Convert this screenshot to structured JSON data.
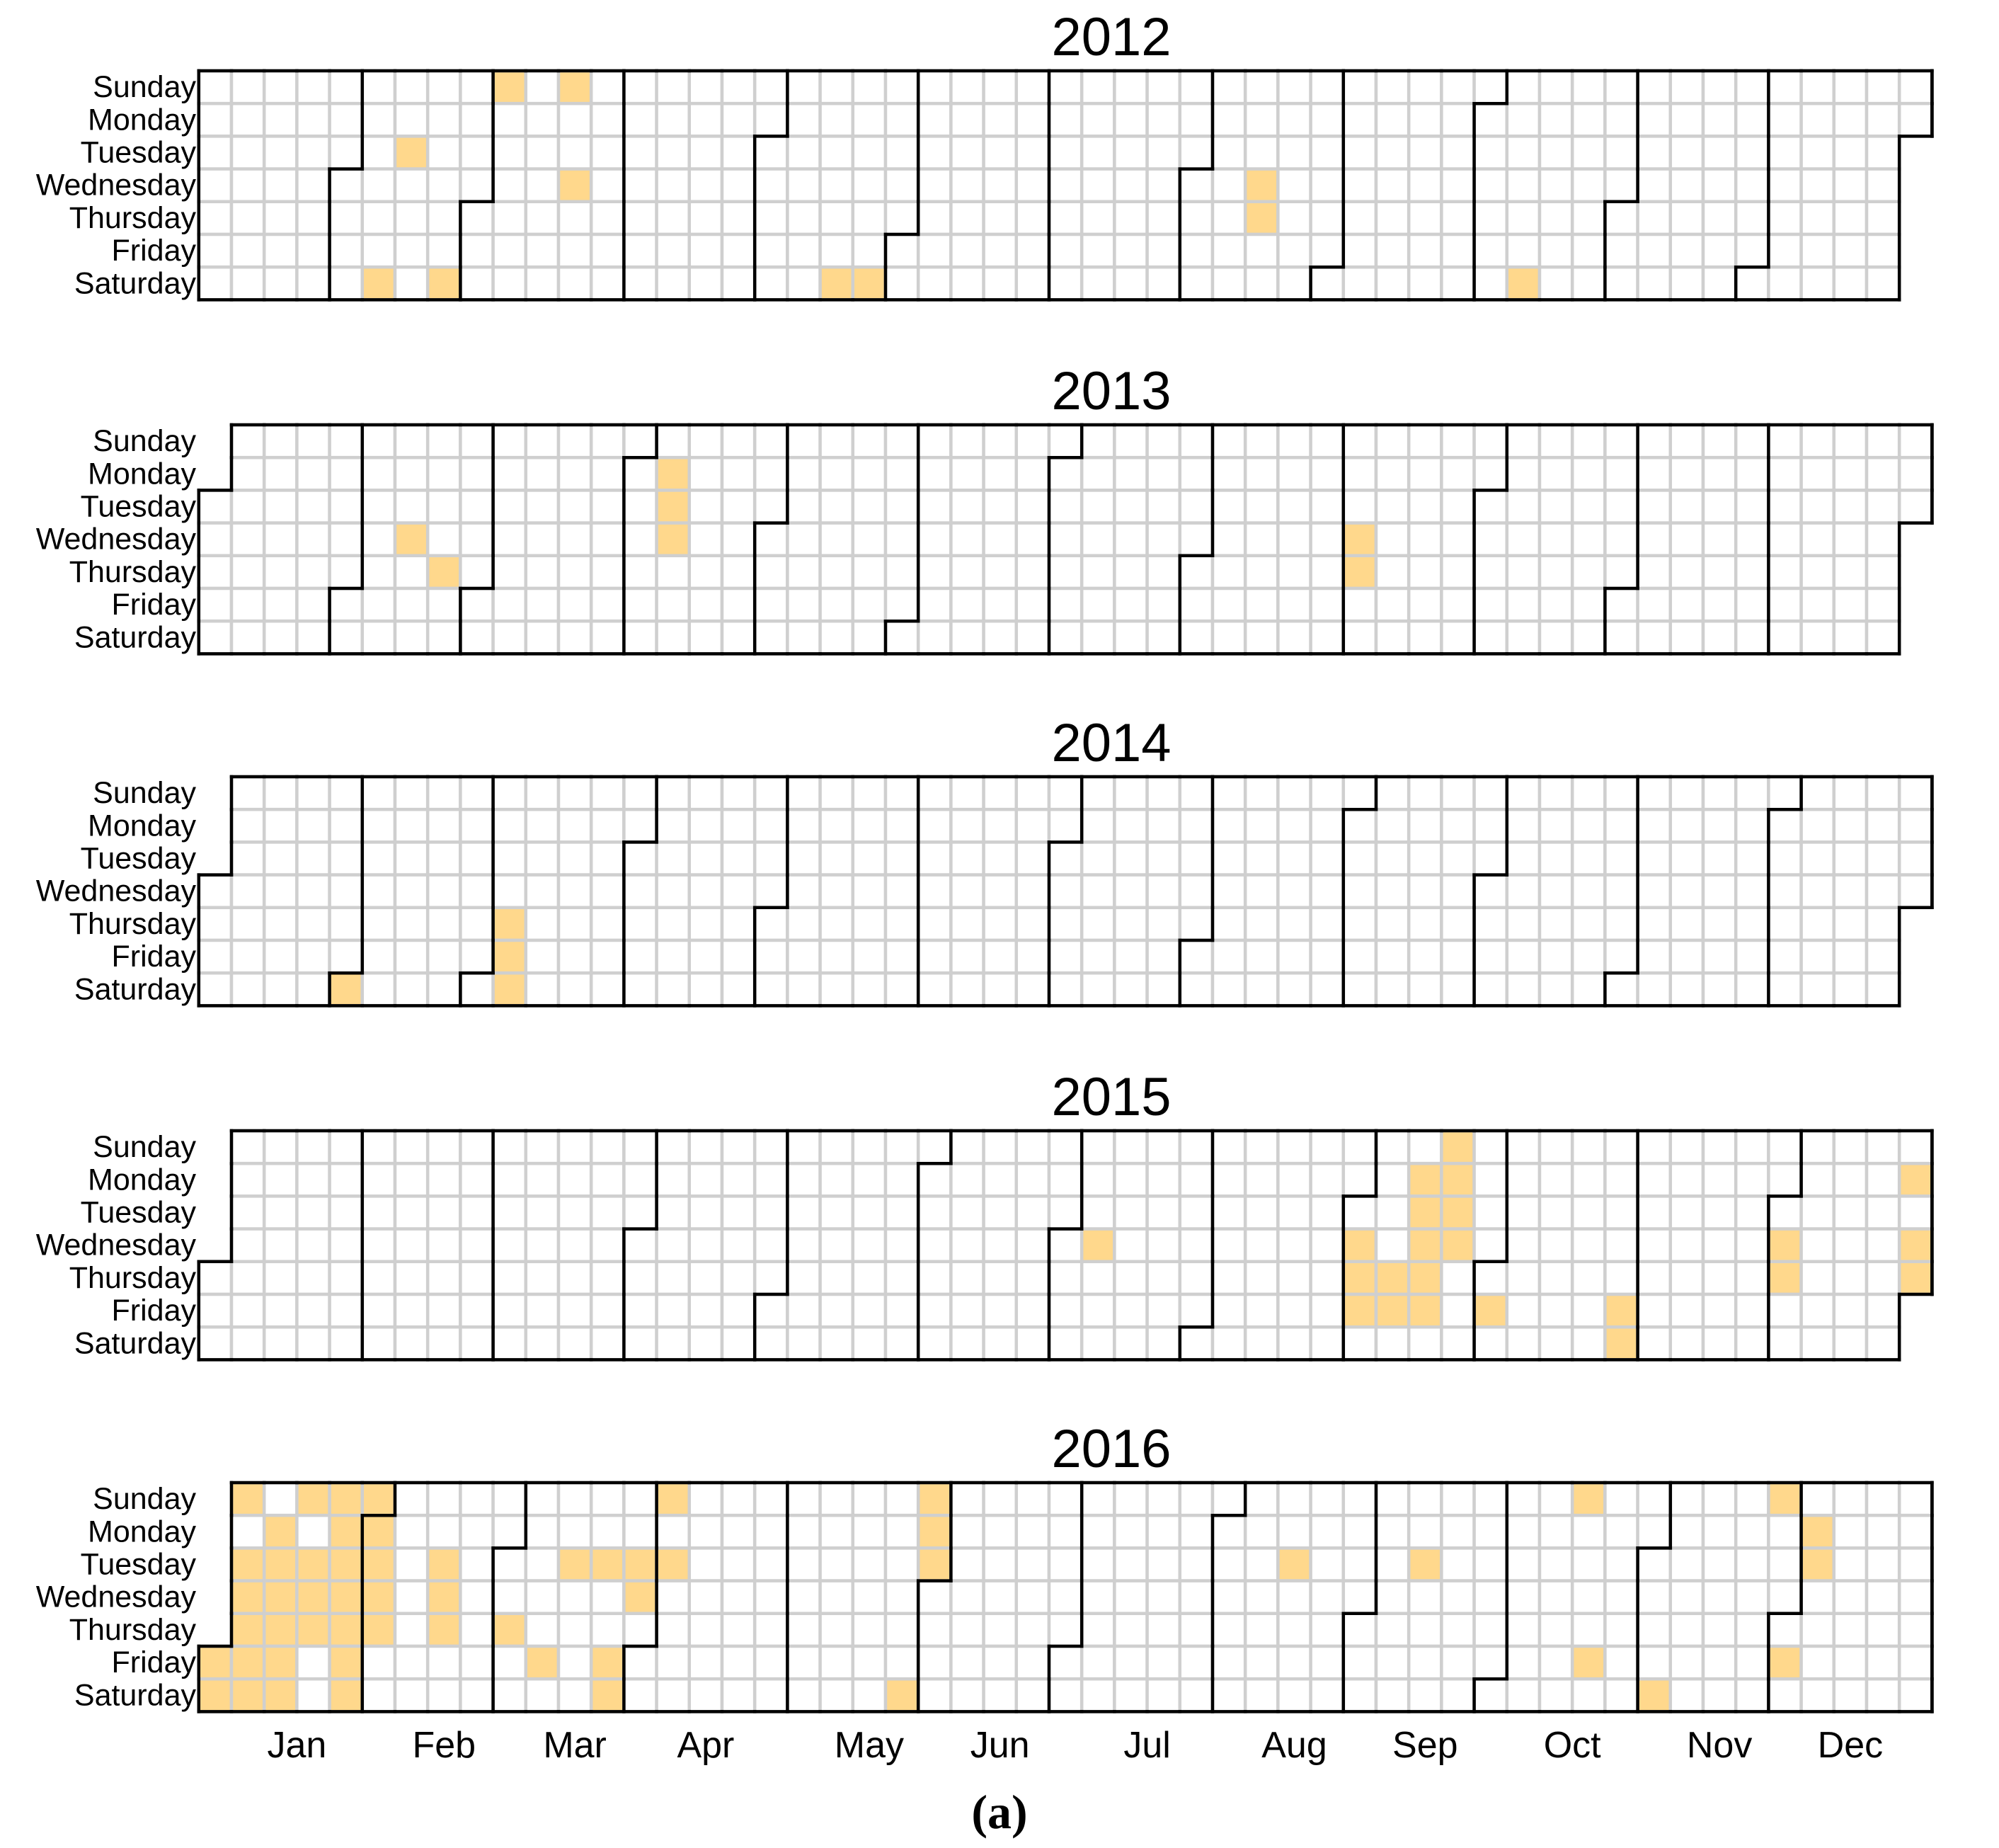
{
  "chart_data": {
    "type": "heatmap",
    "subtype": "calendar",
    "caption": "(a)",
    "day_labels": [
      "Sunday",
      "Monday",
      "Tuesday",
      "Wednesday",
      "Thursday",
      "Friday",
      "Saturday"
    ],
    "month_labels": [
      "Jan",
      "Feb",
      "Mar",
      "Apr",
      "May",
      "Jun",
      "Jul",
      "Aug",
      "Sep",
      "Oct",
      "Nov",
      "Dec"
    ],
    "legend": "none",
    "colors": {
      "highlight": "#FFD88C",
      "empty": "#FFFFFF",
      "grid": "#CFCFCF",
      "month_border": "#000000"
    },
    "years": [
      {
        "year": 2012,
        "highlighted_dates": [
          "2012-02-11",
          "2012-02-14",
          "2012-02-25",
          "2012-03-04",
          "2012-03-18",
          "2012-03-21",
          "2012-05-19",
          "2012-05-26",
          "2012-08-15",
          "2012-08-16",
          "2012-10-13"
        ]
      },
      {
        "year": 2013,
        "highlighted_dates": [
          "2013-02-13",
          "2013-02-21",
          "2013-04-08",
          "2013-04-09",
          "2013-04-10",
          "2013-09-04",
          "2013-09-05"
        ]
      },
      {
        "year": 2014,
        "highlighted_dates": [
          "2014-02-01",
          "2014-03-06",
          "2014-03-07",
          "2014-03-08"
        ]
      },
      {
        "year": 2015,
        "highlighted_dates": [
          "2015-07-08",
          "2015-09-02",
          "2015-09-03",
          "2015-09-04",
          "2015-09-10",
          "2015-09-11",
          "2015-09-14",
          "2015-09-15",
          "2015-09-16",
          "2015-09-17",
          "2015-09-18",
          "2015-09-20",
          "2015-09-21",
          "2015-09-22",
          "2015-09-23",
          "2015-10-02",
          "2015-10-30",
          "2015-10-31",
          "2015-12-02",
          "2015-12-03",
          "2015-12-28",
          "2015-12-30",
          "2015-12-31"
        ]
      },
      {
        "year": 2016,
        "highlighted_dates": [
          "2016-01-01",
          "2016-01-02",
          "2016-01-03",
          "2016-01-05",
          "2016-01-06",
          "2016-01-07",
          "2016-01-08",
          "2016-01-09",
          "2016-01-11",
          "2016-01-12",
          "2016-01-13",
          "2016-01-14",
          "2016-01-15",
          "2016-01-16",
          "2016-01-17",
          "2016-01-19",
          "2016-01-20",
          "2016-01-21",
          "2016-01-24",
          "2016-01-25",
          "2016-01-26",
          "2016-01-27",
          "2016-01-28",
          "2016-01-29",
          "2016-01-30",
          "2016-01-31",
          "2016-02-01",
          "2016-02-02",
          "2016-02-03",
          "2016-02-04",
          "2016-02-16",
          "2016-02-17",
          "2016-02-18",
          "2016-03-03",
          "2016-03-11",
          "2016-03-15",
          "2016-03-22",
          "2016-03-25",
          "2016-03-26",
          "2016-03-29",
          "2016-03-30",
          "2016-04-03",
          "2016-04-05",
          "2016-05-28",
          "2016-05-29",
          "2016-05-30",
          "2016-05-31",
          "2016-08-16",
          "2016-09-13",
          "2016-10-16",
          "2016-10-21",
          "2016-11-05",
          "2016-11-27",
          "2016-12-02",
          "2016-12-05",
          "2016-12-06"
        ]
      }
    ]
  }
}
